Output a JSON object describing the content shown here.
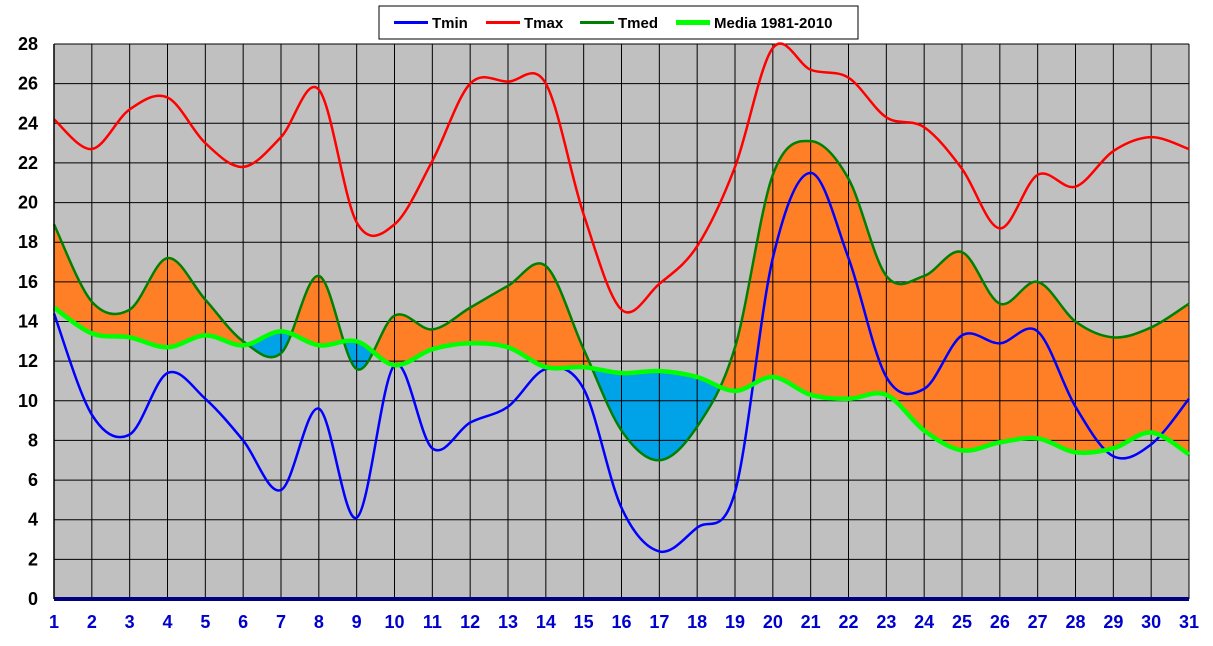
{
  "chart_data": {
    "type": "line",
    "title": "",
    "xlabel": "",
    "ylabel": "",
    "x": [
      1,
      2,
      3,
      4,
      5,
      6,
      7,
      8,
      9,
      10,
      11,
      12,
      13,
      14,
      15,
      16,
      17,
      18,
      19,
      20,
      21,
      22,
      23,
      24,
      25,
      26,
      27,
      28,
      29,
      30,
      31
    ],
    "xlim": [
      1,
      31
    ],
    "ylim": [
      0,
      28
    ],
    "yticks": [
      0,
      2,
      4,
      6,
      8,
      10,
      12,
      14,
      16,
      18,
      20,
      22,
      24,
      26,
      28
    ],
    "grid": true,
    "legend_position": "top-center",
    "fill_above_normal_color": "#ff7f27",
    "fill_below_normal_color": "#00a2e8",
    "plot_background": "#c0c0c0",
    "series": [
      {
        "name": "Tmin",
        "color": "#0000ff",
        "values": [
          14.4,
          9.3,
          8.3,
          11.4,
          10.1,
          8.0,
          5.5,
          9.6,
          4.1,
          11.8,
          7.6,
          8.9,
          9.7,
          11.6,
          10.6,
          4.6,
          2.4,
          3.6,
          5.4,
          17.2,
          21.5,
          17.2,
          11.2,
          10.6,
          13.3,
          12.9,
          13.5,
          9.7,
          7.2,
          7.8,
          10.1
        ]
      },
      {
        "name": "Tmax",
        "color": "#ff0000",
        "values": [
          24.2,
          22.7,
          24.7,
          25.3,
          23.0,
          21.8,
          23.3,
          25.7,
          19.0,
          18.9,
          22.1,
          26.0,
          26.1,
          26.0,
          19.4,
          14.6,
          15.9,
          17.8,
          21.8,
          27.8,
          26.7,
          26.3,
          24.3,
          23.8,
          21.7,
          18.7,
          21.4,
          20.8,
          22.6,
          23.3,
          22.7
        ]
      },
      {
        "name": "Tmed",
        "color": "#008000",
        "values": [
          18.9,
          15.0,
          14.6,
          17.2,
          15.1,
          13.0,
          12.4,
          16.3,
          11.6,
          14.3,
          13.6,
          14.7,
          15.8,
          16.8,
          12.6,
          8.5,
          7.0,
          8.7,
          12.7,
          21.4,
          23.1,
          21.2,
          16.3,
          16.3,
          17.5,
          14.9,
          16.0,
          14.0,
          13.2,
          13.7,
          14.9
        ]
      },
      {
        "name": "Media 1981-2010",
        "color": "#00ff00",
        "values": [
          14.7,
          13.4,
          13.2,
          12.7,
          13.3,
          12.8,
          13.5,
          12.8,
          13.0,
          11.8,
          12.6,
          12.9,
          12.7,
          11.7,
          11.7,
          11.4,
          11.5,
          11.2,
          10.5,
          11.2,
          10.3,
          10.1,
          10.3,
          8.5,
          7.5,
          7.9,
          8.1,
          7.4,
          7.6,
          8.4,
          7.3
        ]
      }
    ]
  }
}
